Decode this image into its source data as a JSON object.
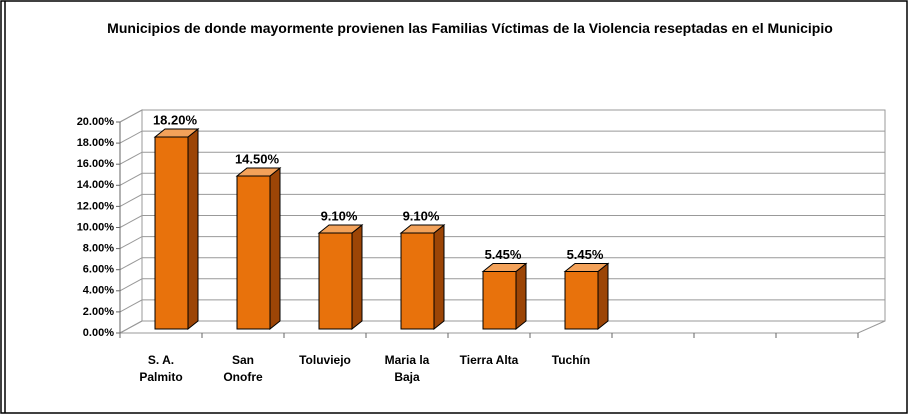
{
  "chart_data": {
    "type": "bar3d",
    "title": "Municipios de donde mayormente provienen las Familias Víctimas de la Violencia reseptadas en el Municipio",
    "categories": [
      "S. A. Palmito",
      "San Onofre",
      "Toluviejo",
      "Maria la Baja",
      "Tierra Alta",
      "Tuchín",
      null,
      null,
      null
    ],
    "values": [
      18.2,
      14.5,
      9.1,
      9.1,
      5.45,
      5.45,
      null,
      null,
      null
    ],
    "value_labels": [
      "18.20%",
      "14.50%",
      "9.10%",
      "9.10%",
      "5.45%",
      "5.45%",
      null,
      null,
      null
    ],
    "color": "#e8720c",
    "ylim": [
      0,
      20
    ],
    "yticks": [
      {
        "value": 0,
        "label": "0.00%"
      },
      {
        "value": 2,
        "label": "2.00%"
      },
      {
        "value": 4,
        "label": "4.00%"
      },
      {
        "value": 6,
        "label": "6.00%"
      },
      {
        "value": 8,
        "label": "8.00%"
      },
      {
        "value": 10,
        "label": "10.00%"
      },
      {
        "value": 12,
        "label": "12.00%"
      },
      {
        "value": 14,
        "label": "14.00%"
      },
      {
        "value": 16,
        "label": "16.00%"
      },
      {
        "value": 18,
        "label": "18.00%"
      },
      {
        "value": 20,
        "label": "20.00%"
      }
    ],
    "grid": true
  }
}
